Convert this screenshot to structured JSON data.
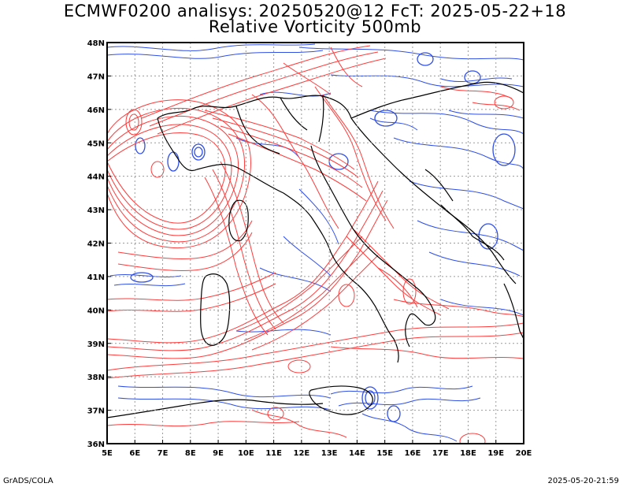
{
  "title": {
    "line1": "ECMWF0200 analisys: 20250520@12 FcT: 2025-05-22+18",
    "line2": "Relative Vorticity 500mb"
  },
  "map": {
    "lon_range": [
      5,
      20
    ],
    "lat_range": [
      36,
      48
    ],
    "lon_labels": [
      "5E",
      "6E",
      "7E",
      "8E",
      "9E",
      "10E",
      "11E",
      "12E",
      "13E",
      "14E",
      "15E",
      "16E",
      "17E",
      "18E",
      "19E",
      "20E"
    ],
    "lat_labels": [
      "36N",
      "37N",
      "38N",
      "39N",
      "40N",
      "41N",
      "42N",
      "43N",
      "44N",
      "45N",
      "46N",
      "47N",
      "48N"
    ],
    "grid": true,
    "colors": {
      "positive_contour": "#ff3b3b",
      "negative_contour": "#2f4fe6",
      "coastline": "#000000",
      "grid": "#9a9a9a"
    }
  },
  "footer": {
    "left": "GrADS/COLA",
    "right": "2025-05-20-21:59"
  }
}
